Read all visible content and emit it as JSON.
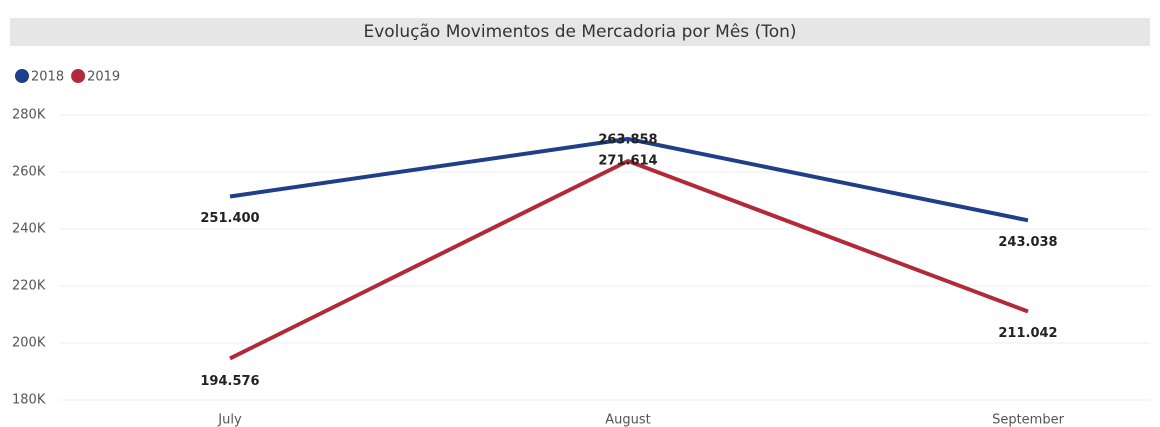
{
  "chart_data": {
    "type": "line",
    "title": "Evolução Movimentos de Mercadoria por Mês (Ton)",
    "categories": [
      "July",
      "August",
      "September"
    ],
    "series": [
      {
        "name": "2018",
        "color": "#1f3f8a",
        "values": [
          251400,
          271614,
          243038
        ],
        "value_labels": [
          "251.400",
          "271.614",
          "243.038"
        ]
      },
      {
        "name": "2019",
        "color": "#b22a3a",
        "values": [
          194576,
          263858,
          211042
        ],
        "value_labels": [
          "194.576",
          "263.858",
          "211.042"
        ]
      }
    ],
    "ylim": [
      180000,
      280000
    ],
    "yticks": [
      {
        "value": 180000,
        "label": "180K"
      },
      {
        "value": 200000,
        "label": "200K"
      },
      {
        "value": 220000,
        "label": "220K"
      },
      {
        "value": 240000,
        "label": "240K"
      },
      {
        "value": 260000,
        "label": "260K"
      },
      {
        "value": 280000,
        "label": "280K"
      }
    ],
    "grid": true,
    "legend": "top-left"
  }
}
